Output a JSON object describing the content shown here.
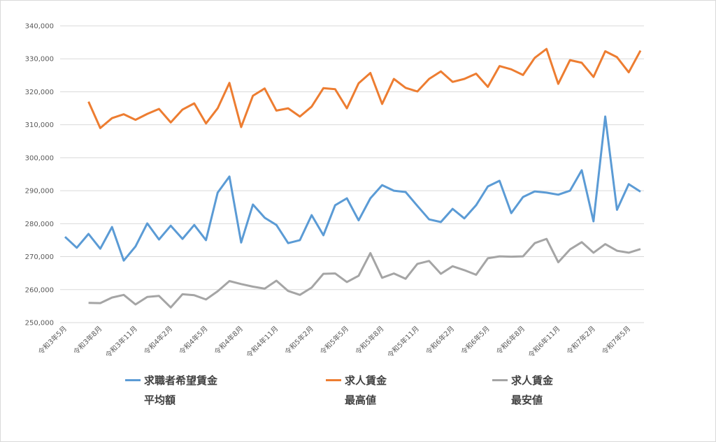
{
  "chart_data": {
    "type": "line",
    "categories": [
      "令和3年5月",
      null,
      null,
      "令和3年8月",
      null,
      null,
      "令和3年11月",
      null,
      null,
      "令和4年2月",
      null,
      null,
      "令和4年5月",
      null,
      null,
      "令和4年8月",
      null,
      null,
      "令和4年11月",
      null,
      null,
      "令和5年2月",
      null,
      null,
      "令和5年5月",
      null,
      null,
      "令和5年8月",
      null,
      null,
      "令和5年11月",
      null,
      null,
      "令和6年2月",
      null,
      null,
      "令和6年5月",
      null,
      null,
      "令和6年8月",
      null,
      null,
      "令和6年11月",
      null,
      null,
      "令和7年2月",
      null,
      null,
      "令和7年5月",
      null
    ],
    "series": [
      {
        "name": "求職者希望賃金\n平均額",
        "color": "#5b9bd5",
        "values": [
          276000,
          272700,
          276900,
          272400,
          279000,
          268800,
          273100,
          280100,
          275200,
          279400,
          275400,
          279600,
          275000,
          289400,
          294300,
          274300,
          285800,
          281800,
          279600,
          274100,
          275000,
          282600,
          276500,
          285600,
          287700,
          281000,
          287700,
          291700,
          290000,
          289600,
          285400,
          281300,
          280500,
          284500,
          281600,
          285600,
          291300,
          293000,
          283200,
          288100,
          289800,
          289400,
          288800,
          290000,
          296200,
          280700,
          312500,
          284200,
          292000,
          289700
        ]
      },
      {
        "name": "求人賃金\n最高値",
        "color": "#ed7d31",
        "values": [
          null,
          null,
          317000,
          309000,
          312000,
          313200,
          311500,
          313300,
          314800,
          310700,
          314600,
          316500,
          310400,
          315000,
          322700,
          309300,
          318800,
          321000,
          314300,
          315000,
          312500,
          315500,
          321100,
          320800,
          315000,
          322600,
          325700,
          316300,
          323900,
          321200,
          320100,
          323900,
          326200,
          323000,
          323900,
          325500,
          321500,
          327800,
          326800,
          325100,
          330300,
          333000,
          322400,
          329600,
          328800,
          324500,
          332300,
          330500,
          325900,
          332500
        ]
      },
      {
        "name": "求人賃金\n最安値",
        "color": "#a5a5a5",
        "values": [
          null,
          null,
          256000,
          255900,
          257600,
          258400,
          255500,
          257800,
          258100,
          254600,
          258600,
          258300,
          257000,
          259500,
          262600,
          261700,
          260900,
          260300,
          262700,
          259600,
          258400,
          260600,
          264800,
          264900,
          262300,
          264200,
          271100,
          263600,
          264900,
          263300,
          267800,
          268700,
          264800,
          267100,
          265900,
          264500,
          269500,
          270100,
          270000,
          270100,
          274100,
          275400,
          268300,
          272200,
          274400,
          271200,
          273800,
          271800,
          271200,
          272300
        ]
      }
    ],
    "ylim": [
      250000,
      340000
    ],
    "yticks": [
      {
        "value": 250000,
        "label": "250,000"
      },
      {
        "value": 260000,
        "label": "260,000"
      },
      {
        "value": 270000,
        "label": "270,000"
      },
      {
        "value": 280000,
        "label": "280,000"
      },
      {
        "value": 290000,
        "label": "290,000"
      },
      {
        "value": 300000,
        "label": "300,000"
      },
      {
        "value": 310000,
        "label": "310,000"
      },
      {
        "value": 320000,
        "label": "320,000"
      },
      {
        "value": 330000,
        "label": "330,000"
      },
      {
        "value": 340000,
        "label": "340,000"
      }
    ],
    "grid": true
  }
}
